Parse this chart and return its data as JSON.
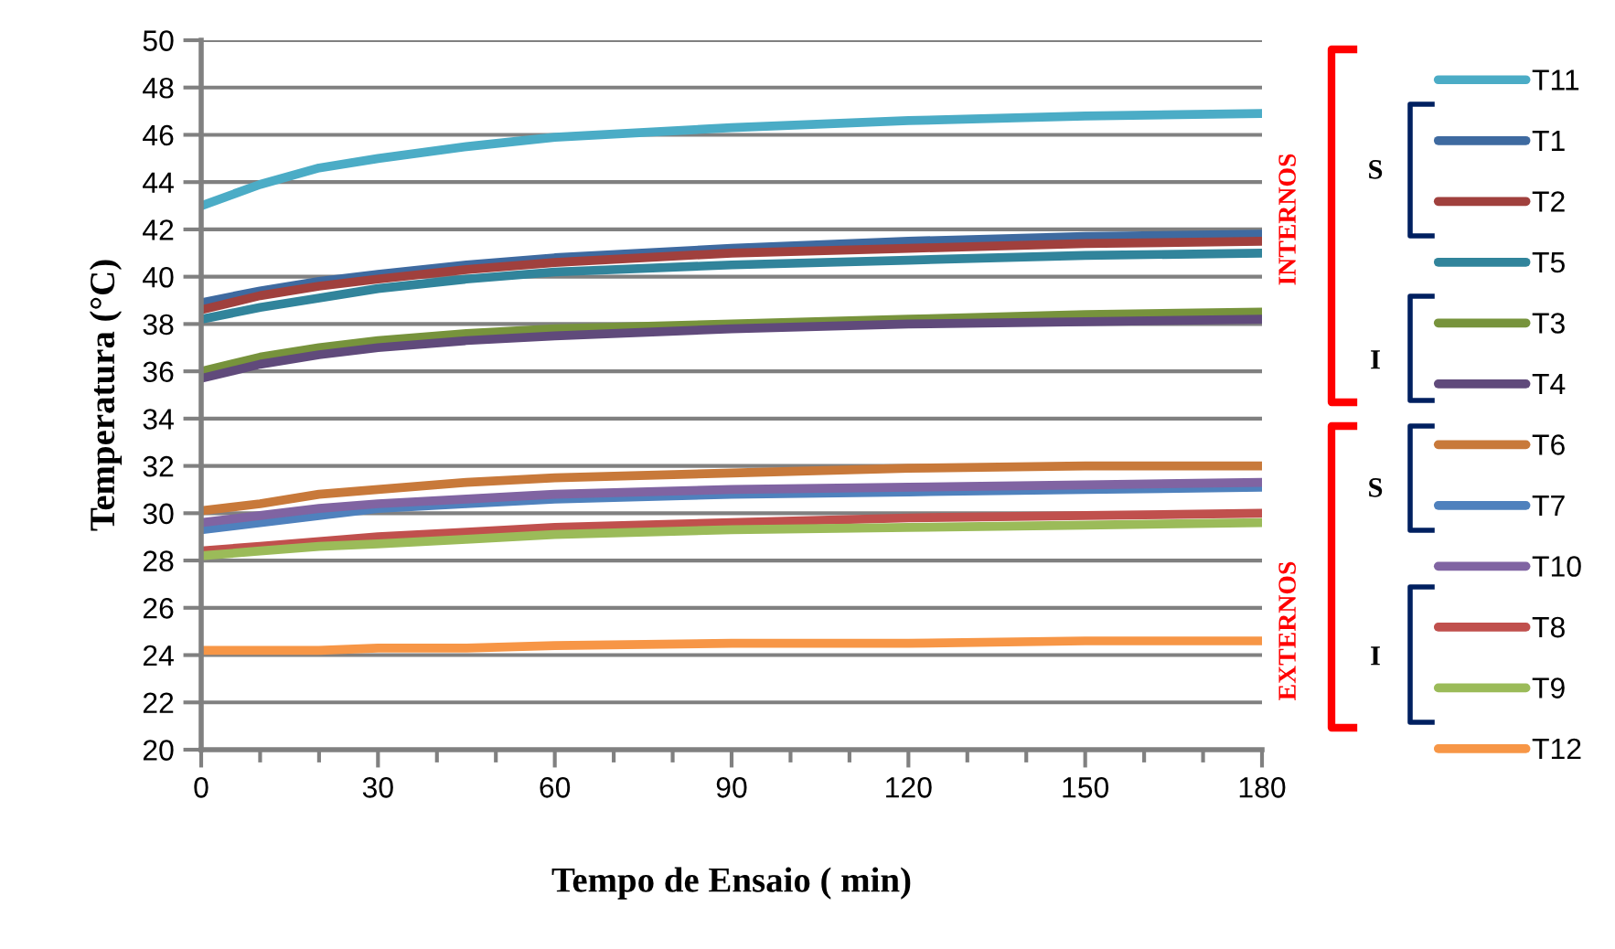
{
  "chart_data": {
    "type": "line",
    "xlabel": "Tempo de Ensaio ( min)",
    "ylabel": "Temperatura (°C)",
    "x": [
      0,
      10,
      20,
      30,
      45,
      60,
      90,
      120,
      150,
      180
    ],
    "xlim": [
      0,
      180
    ],
    "xticks": [
      0,
      30,
      60,
      90,
      120,
      150,
      180
    ],
    "ylim": [
      20,
      50
    ],
    "yticks": [
      20,
      22,
      24,
      26,
      28,
      30,
      32,
      34,
      36,
      38,
      40,
      42,
      44,
      46,
      48,
      50
    ],
    "grid": "y",
    "legend": "right",
    "marker": "none",
    "line_style": "solid",
    "annotations": [
      "INTERNOS",
      "EXTERNOS",
      "S",
      "I",
      "S",
      "I"
    ],
    "series": [
      {
        "name": "T11",
        "color": "#4bacc6",
        "values": [
          43.0,
          43.9,
          44.6,
          45.0,
          45.5,
          45.9,
          46.3,
          46.6,
          46.8,
          46.9
        ]
      },
      {
        "name": "T1",
        "color": "#3e6aa0",
        "values": [
          38.9,
          39.4,
          39.8,
          40.1,
          40.5,
          40.8,
          41.2,
          41.5,
          41.7,
          41.8
        ]
      },
      {
        "name": "T2",
        "color": "#a0403d",
        "values": [
          38.6,
          39.2,
          39.6,
          39.9,
          40.3,
          40.6,
          41.0,
          41.2,
          41.4,
          41.5
        ]
      },
      {
        "name": "T5",
        "color": "#31849b",
        "values": [
          38.2,
          38.7,
          39.1,
          39.5,
          39.9,
          40.2,
          40.5,
          40.7,
          40.9,
          41.0
        ]
      },
      {
        "name": "T3",
        "color": "#77933c",
        "values": [
          36.0,
          36.6,
          37.0,
          37.3,
          37.6,
          37.8,
          38.0,
          38.2,
          38.4,
          38.5
        ]
      },
      {
        "name": "T4",
        "color": "#604a7b",
        "values": [
          35.7,
          36.3,
          36.7,
          37.0,
          37.3,
          37.5,
          37.8,
          38.0,
          38.1,
          38.2
        ]
      },
      {
        "name": "T6",
        "color": "#c8793a",
        "values": [
          30.1,
          30.4,
          30.8,
          31.0,
          31.3,
          31.5,
          31.7,
          31.9,
          32.0,
          32.0
        ]
      },
      {
        "name": "T7",
        "color": "#4f81bd",
        "values": [
          29.3,
          29.6,
          29.9,
          30.2,
          30.4,
          30.6,
          30.8,
          30.9,
          31.0,
          31.1
        ]
      },
      {
        "name": "T10",
        "color": "#8064a2",
        "values": [
          29.6,
          29.9,
          30.2,
          30.4,
          30.6,
          30.8,
          31.0,
          31.1,
          31.2,
          31.3
        ]
      },
      {
        "name": "T8",
        "color": "#c0504d",
        "values": [
          28.4,
          28.6,
          28.8,
          29.0,
          29.2,
          29.4,
          29.6,
          29.8,
          29.9,
          30.0
        ]
      },
      {
        "name": "T9",
        "color": "#9bbb59",
        "values": [
          28.2,
          28.4,
          28.6,
          28.7,
          28.9,
          29.1,
          29.3,
          29.4,
          29.5,
          29.6
        ]
      },
      {
        "name": "T12",
        "color": "#f79646",
        "values": [
          24.2,
          24.2,
          24.2,
          24.3,
          24.3,
          24.4,
          24.5,
          24.5,
          24.6,
          24.6
        ]
      }
    ]
  }
}
